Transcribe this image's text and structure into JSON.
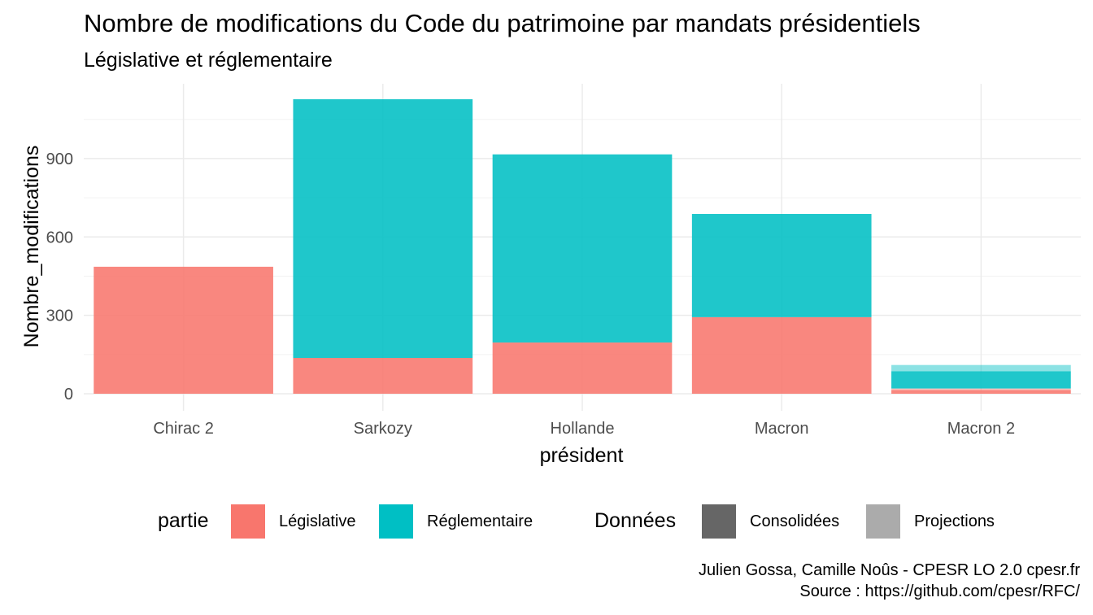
{
  "chart_data": {
    "type": "bar",
    "stacked": true,
    "title": "Nombre de modifications du Code du patrimoine par mandats présidentiels",
    "subtitle": "Législative et réglementaire",
    "xlabel": "président",
    "ylabel": "Nombre_modifications",
    "categories": [
      "Chirac 2",
      "Sarkozy",
      "Hollande",
      "Macron",
      "Macron 2"
    ],
    "ylim": [
      0,
      1180
    ],
    "yticks": [
      0,
      300,
      600,
      900
    ],
    "grid": true,
    "series": [
      {
        "name": "Législative",
        "color": "#F8766D",
        "values": [
          486,
          137,
          196,
          293,
          14
        ]
      },
      {
        "name": "Réglementaire",
        "color": "#00BFC4",
        "values": [
          0,
          990,
          720,
          395,
          66
        ]
      }
    ],
    "projections": [
      {
        "category": "Macron 2",
        "series": "Législative",
        "value": 6
      },
      {
        "category": "Macron 2",
        "series": "Réglementaire",
        "value": 24
      }
    ],
    "legend_position": "bottom",
    "legends": [
      {
        "title": "partie",
        "entries": [
          {
            "label": "Législative",
            "color": "#F8766D"
          },
          {
            "label": "Réglementaire",
            "color": "#00BFC4"
          }
        ]
      },
      {
        "title": "Données",
        "entries": [
          {
            "label": "Consolidées",
            "color": "#666666"
          },
          {
            "label": "Projections",
            "color": "#ABABAB"
          }
        ]
      }
    ],
    "caption": [
      "Julien Gossa, Camille Noûs - CPESR LO 2.0 cpesr.fr",
      "Source : https://github.com/cpesr/RFC/"
    ]
  }
}
